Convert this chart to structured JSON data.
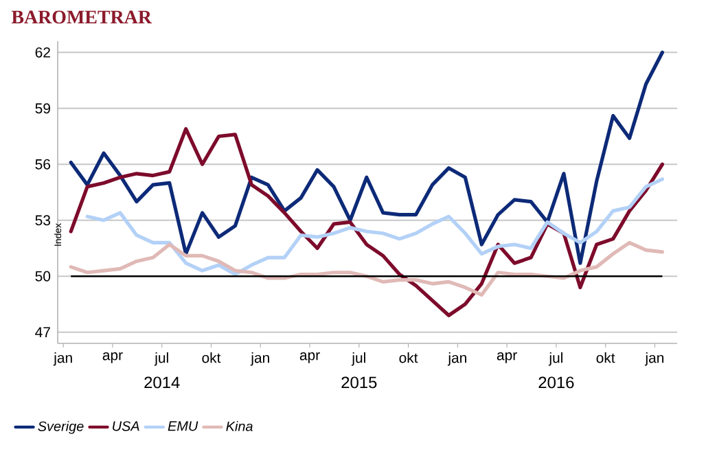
{
  "chart_data": {
    "type": "line",
    "title": "BAROMETRAR",
    "ylabel": "Index",
    "x": [
      "2014-01-15",
      "2014-02-15",
      "2014-03-15",
      "2014-04-15",
      "2014-05-15",
      "2014-06-15",
      "2014-07-15",
      "2014-08-15",
      "2014-09-15",
      "2014-10-15",
      "2014-11-15",
      "2014-12-15",
      "2015-01-15",
      "2015-02-15",
      "2015-03-15",
      "2015-04-15",
      "2015-05-15",
      "2015-06-15",
      "2015-07-15",
      "2015-08-15",
      "2015-09-15",
      "2015-10-15",
      "2015-11-15",
      "2015-12-15",
      "2016-01-15",
      "2016-02-15",
      "2016-03-15",
      "2016-04-15",
      "2016-05-15",
      "2016-06-15",
      "2016-07-15",
      "2016-08-15",
      "2016-09-15",
      "2016-10-15",
      "2016-11-15",
      "2016-12-15",
      "2017-01-15"
    ],
    "series": [
      {
        "name": "Sverige",
        "color": "#0d2a78",
        "values": [
          56.1,
          54.9,
          56.6,
          55.4,
          54.0,
          54.9,
          55.0,
          51.2,
          53.4,
          52.1,
          52.7,
          55.3,
          54.9,
          53.5,
          54.2,
          55.7,
          54.8,
          53.0,
          55.3,
          53.4,
          53.3,
          53.3,
          54.9,
          55.8,
          55.3,
          51.7,
          53.3,
          54.1,
          54.0,
          52.9,
          55.5,
          50.7,
          55.1,
          58.6,
          57.4,
          60.3,
          62.0
        ]
      },
      {
        "name": "USA",
        "color": "#7d0b2b",
        "values": [
          52.4,
          54.8,
          55.0,
          55.3,
          55.5,
          55.4,
          55.6,
          57.9,
          56.0,
          57.5,
          57.6,
          54.9,
          54.3,
          53.4,
          52.4,
          51.5,
          52.8,
          52.9,
          51.7,
          51.1,
          50.1,
          49.5,
          48.7,
          47.9,
          48.5,
          49.6,
          51.7,
          50.7,
          51.0,
          52.8,
          52.3,
          49.4,
          51.7,
          52.0,
          53.5,
          54.6,
          56.0
        ]
      },
      {
        "name": "EMU",
        "color": "#b3d1f7",
        "values": [
          null,
          53.2,
          53.0,
          53.4,
          52.2,
          51.8,
          51.8,
          50.7,
          50.3,
          50.6,
          50.1,
          50.6,
          51.0,
          51.0,
          52.2,
          52.1,
          52.3,
          52.6,
          52.4,
          52.3,
          52.0,
          52.3,
          52.8,
          53.2,
          52.3,
          51.2,
          51.6,
          51.7,
          51.5,
          52.9,
          52.3,
          51.8,
          52.4,
          53.5,
          53.7,
          54.8,
          55.2
        ]
      },
      {
        "name": "Kina",
        "color": "#e0b9b6",
        "values": [
          50.5,
          50.2,
          50.3,
          50.4,
          50.8,
          51.0,
          51.7,
          51.1,
          51.1,
          50.8,
          50.3,
          50.2,
          49.9,
          49.9,
          50.1,
          50.1,
          50.2,
          50.2,
          50.0,
          49.7,
          49.8,
          49.8,
          49.6,
          49.7,
          49.4,
          49.0,
          50.2,
          50.1,
          50.1,
          50.0,
          49.9,
          50.3,
          50.5,
          51.2,
          51.8,
          51.4,
          51.3
        ]
      }
    ],
    "xlim": [
      "2013-12-21",
      "2017-02-12"
    ],
    "xticks": [
      {
        "value": "2014-01-01",
        "label": "jan"
      },
      {
        "value": "2014-04-01",
        "label": "apr"
      },
      {
        "value": "2014-07-01",
        "label": "jul"
      },
      {
        "value": "2014-10-01",
        "label": "okt"
      },
      {
        "value": "2015-01-01",
        "label": "jan"
      },
      {
        "value": "2015-04-01",
        "label": "apr"
      },
      {
        "value": "2015-07-01",
        "label": "jul"
      },
      {
        "value": "2015-10-01",
        "label": "okt"
      },
      {
        "value": "2016-01-01",
        "label": "jan"
      },
      {
        "value": "2016-04-01",
        "label": "apr"
      },
      {
        "value": "2016-07-01",
        "label": "jul"
      },
      {
        "value": "2016-10-01",
        "label": "okt"
      },
      {
        "value": "2017-01-01",
        "label": "jan"
      }
    ],
    "ylim": [
      46.4,
      62.6
    ],
    "yticks": [
      47,
      50,
      53,
      56,
      59,
      62
    ],
    "ref_lines": [
      {
        "axis": "y",
        "value": 50,
        "color": "#000000"
      }
    ],
    "annotations": [
      "2014",
      "2015",
      "2016"
    ],
    "grid": "y",
    "legend": "bottom"
  }
}
